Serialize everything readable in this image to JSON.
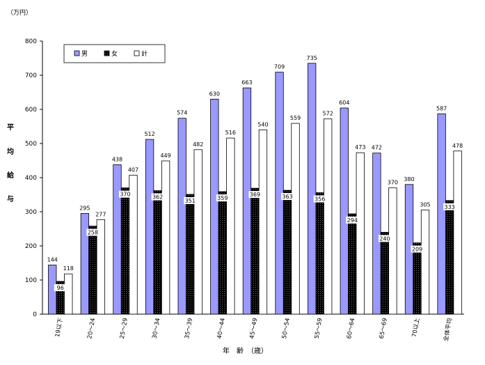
{
  "chart_data": {
    "type": "bar",
    "unit": "（万円）",
    "ylabel": "平均給与",
    "xlabel": "年　齢　（歳）",
    "ylim": [
      0,
      800
    ],
    "yticks": [
      0,
      100,
      200,
      300,
      400,
      500,
      600,
      700,
      800
    ],
    "grid": false,
    "legend_position": "top-left",
    "categories": [
      "19以下",
      "20～24",
      "25～29",
      "30～34",
      "35～39",
      "40～44",
      "45～49",
      "50～54",
      "55～59",
      "60～64",
      "65～69",
      "70以上",
      "全体平均"
    ],
    "series": [
      {
        "name": "男",
        "color": "#9999ff",
        "values": [
          144,
          295,
          438,
          512,
          574,
          630,
          663,
          709,
          735,
          604,
          472,
          380,
          587
        ]
      },
      {
        "name": "女",
        "color": "#000000",
        "values": [
          96,
          258,
          370,
          362,
          351,
          359,
          369,
          363,
          356,
          294,
          240,
          209,
          333
        ]
      },
      {
        "name": "計",
        "color": "#ffffff",
        "values": [
          118,
          277,
          407,
          449,
          482,
          516,
          540,
          559,
          572,
          473,
          370,
          305,
          478
        ]
      }
    ]
  }
}
